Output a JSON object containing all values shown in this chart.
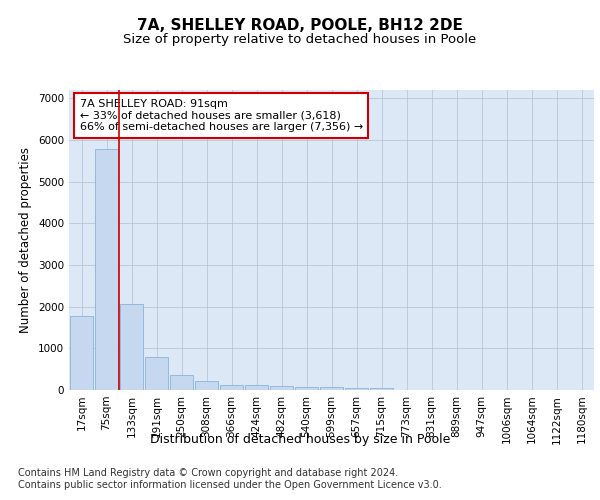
{
  "title1": "7A, SHELLEY ROAD, POOLE, BH12 2DE",
  "title2": "Size of property relative to detached houses in Poole",
  "xlabel": "Distribution of detached houses by size in Poole",
  "ylabel": "Number of detached properties",
  "categories": [
    "17sqm",
    "75sqm",
    "133sqm",
    "191sqm",
    "250sqm",
    "308sqm",
    "366sqm",
    "424sqm",
    "482sqm",
    "540sqm",
    "599sqm",
    "657sqm",
    "715sqm",
    "773sqm",
    "831sqm",
    "889sqm",
    "947sqm",
    "1006sqm",
    "1064sqm",
    "1122sqm",
    "1180sqm"
  ],
  "values": [
    1780,
    5780,
    2060,
    800,
    360,
    220,
    130,
    110,
    95,
    75,
    65,
    60,
    55,
    0,
    0,
    0,
    0,
    0,
    0,
    0,
    0
  ],
  "bar_color": "#c5d8ef",
  "bar_edge_color": "#8ab4d8",
  "red_line_x": 1.5,
  "highlight_line_color": "#cc0000",
  "annotation_text": "7A SHELLEY ROAD: 91sqm\n← 33% of detached houses are smaller (3,618)\n66% of semi-detached houses are larger (7,356) →",
  "annotation_box_color": "#ffffff",
  "annotation_box_edge_color": "#cc0000",
  "ylim": [
    0,
    7200
  ],
  "yticks": [
    0,
    1000,
    2000,
    3000,
    4000,
    5000,
    6000,
    7000
  ],
  "bg_color": "#ffffff",
  "plot_bg_color": "#dce8f5",
  "footer1": "Contains HM Land Registry data © Crown copyright and database right 2024.",
  "footer2": "Contains public sector information licensed under the Open Government Licence v3.0.",
  "title1_fontsize": 11,
  "title2_fontsize": 9.5,
  "xlabel_fontsize": 9,
  "ylabel_fontsize": 8.5,
  "tick_fontsize": 7.5,
  "annotation_fontsize": 8,
  "footer_fontsize": 7
}
